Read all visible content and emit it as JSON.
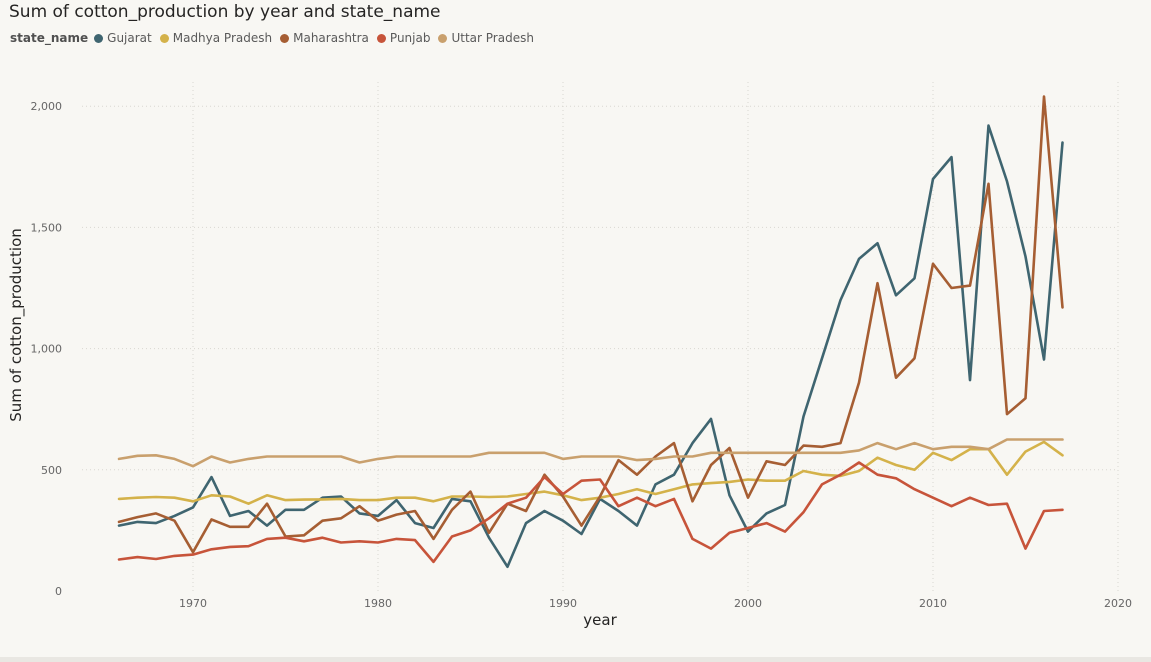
{
  "chart_data": {
    "type": "line",
    "title": "Sum of cotton_production by year and state_name",
    "xlabel": "year",
    "ylabel": "Sum of cotton_production",
    "legend_title": "state_name",
    "legend_placement": "top-left",
    "grid": true,
    "xlim": [
      1964,
      2020
    ],
    "ylim": [
      0,
      2100
    ],
    "x_ticks": [
      1970,
      1980,
      1990,
      2000,
      2010,
      2020
    ],
    "y_ticks": [
      0,
      500,
      1000,
      1500,
      2000
    ],
    "y_tick_labels": [
      "0",
      "500",
      "1,000",
      "1,500",
      "2,000"
    ],
    "x_tick_labels": [
      "1970",
      "1980",
      "1990",
      "2000",
      "2010",
      "2020"
    ],
    "x": [
      1966,
      1967,
      1968,
      1969,
      1970,
      1971,
      1972,
      1973,
      1974,
      1975,
      1976,
      1977,
      1978,
      1979,
      1980,
      1981,
      1982,
      1983,
      1984,
      1985,
      1986,
      1987,
      1988,
      1989,
      1990,
      1991,
      1992,
      1993,
      1994,
      1995,
      1996,
      1997,
      1998,
      1999,
      2000,
      2001,
      2002,
      2003,
      2004,
      2005,
      2006,
      2007,
      2008,
      2009,
      2010,
      2011,
      2012,
      2013,
      2014,
      2015,
      2016,
      2017
    ],
    "series": [
      {
        "name": "Gujarat",
        "color": "#3f6570",
        "values": [
          270,
          285,
          280,
          310,
          345,
          470,
          310,
          330,
          270,
          335,
          335,
          385,
          390,
          320,
          310,
          375,
          280,
          260,
          380,
          370,
          220,
          100,
          280,
          330,
          290,
          235,
          380,
          330,
          270,
          440,
          480,
          610,
          710,
          395,
          245,
          320,
          355,
          720,
          960,
          1200,
          1370,
          1435,
          1220,
          1290,
          1700,
          1790,
          870,
          1920,
          1690,
          1380,
          955,
          1850
        ]
      },
      {
        "name": "Madhya Pradesh",
        "color": "#d4b24a",
        "values": [
          380,
          385,
          388,
          385,
          370,
          395,
          390,
          360,
          395,
          375,
          377,
          378,
          380,
          375,
          375,
          385,
          385,
          370,
          390,
          390,
          388,
          390,
          400,
          410,
          395,
          375,
          385,
          400,
          420,
          400,
          420,
          440,
          445,
          450,
          460,
          455,
          455,
          495,
          480,
          475,
          495,
          550,
          520,
          500,
          570,
          540,
          585,
          585,
          480,
          575,
          615,
          560
        ]
      },
      {
        "name": "Maharashtra",
        "color": "#a65e33",
        "values": [
          285,
          305,
          320,
          290,
          160,
          295,
          265,
          265,
          360,
          225,
          230,
          290,
          300,
          350,
          290,
          315,
          330,
          215,
          335,
          410,
          240,
          360,
          330,
          480,
          390,
          270,
          390,
          540,
          480,
          555,
          610,
          370,
          520,
          590,
          385,
          535,
          520,
          600,
          595,
          610,
          860,
          1270,
          880,
          960,
          1350,
          1250,
          1260,
          1680,
          730,
          795,
          2040,
          1170
        ]
      },
      {
        "name": "Punjab",
        "color": "#c7543a",
        "values": [
          130,
          140,
          132,
          145,
          150,
          172,
          182,
          185,
          215,
          220,
          205,
          220,
          200,
          205,
          200,
          215,
          210,
          120,
          225,
          250,
          300,
          360,
          385,
          470,
          400,
          455,
          460,
          350,
          385,
          350,
          380,
          215,
          175,
          240,
          260,
          280,
          245,
          325,
          440,
          480,
          530,
          480,
          465,
          420,
          385,
          350,
          385,
          355,
          360,
          175,
          330,
          335
        ]
      },
      {
        "name": "Uttar Pradesh",
        "color": "#c9a06d",
        "values": [
          545,
          558,
          560,
          545,
          515,
          555,
          530,
          545,
          555,
          555,
          555,
          555,
          555,
          530,
          545,
          555,
          555,
          555,
          555,
          555,
          570,
          570,
          570,
          570,
          545,
          555,
          555,
          555,
          540,
          545,
          555,
          555,
          570,
          570,
          570,
          570,
          570,
          570,
          570,
          570,
          580,
          610,
          585,
          610,
          585,
          595,
          595,
          585,
          625,
          625,
          625,
          625
        ]
      }
    ]
  }
}
